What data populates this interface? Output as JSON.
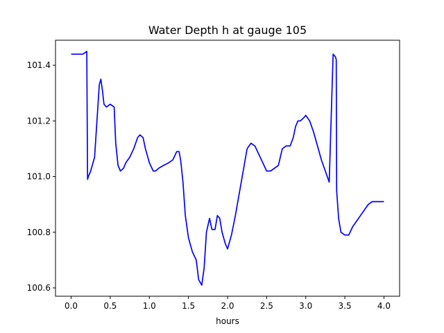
{
  "chart_data": {
    "type": "line",
    "title": "Water Depth h at gauge 105",
    "xlabel": "hours",
    "ylabel": "",
    "xlim": [
      -0.2,
      4.2
    ],
    "ylim": [
      100.57,
      101.49
    ],
    "xticks": [
      0.0,
      0.5,
      1.0,
      1.5,
      2.0,
      2.5,
      3.0,
      3.5,
      4.0
    ],
    "xtick_labels": [
      "0.0",
      "0.5",
      "1.0",
      "1.5",
      "2.0",
      "2.5",
      "3.0",
      "3.5",
      "4.0"
    ],
    "yticks": [
      100.6,
      100.8,
      101.0,
      101.2,
      101.4
    ],
    "ytick_labels": [
      "100.6",
      "100.8",
      "101.0",
      "101.2",
      "101.4"
    ],
    "grid": false,
    "line_color": "#0000ff",
    "series": [
      {
        "x": [
          0.0,
          0.15,
          0.2,
          0.21,
          0.22,
          0.25,
          0.3,
          0.33,
          0.36,
          0.38,
          0.4,
          0.42,
          0.45,
          0.5,
          0.55,
          0.57,
          0.6,
          0.63,
          0.67,
          0.7,
          0.75,
          0.8,
          0.85,
          0.88,
          0.92,
          0.95,
          1.0,
          1.05,
          1.08,
          1.12,
          1.18,
          1.25,
          1.3,
          1.35,
          1.38,
          1.4,
          1.43,
          1.46,
          1.5,
          1.55,
          1.6,
          1.63,
          1.67,
          1.7,
          1.73,
          1.77,
          1.8,
          1.84,
          1.87,
          1.9,
          1.93,
          1.97,
          2.0,
          2.05,
          2.1,
          2.15,
          2.2,
          2.25,
          2.3,
          2.35,
          2.4,
          2.45,
          2.5,
          2.55,
          2.6,
          2.65,
          2.7,
          2.75,
          2.8,
          2.84,
          2.87,
          2.9,
          2.93,
          2.97,
          3.0,
          3.05,
          3.1,
          3.15,
          3.2,
          3.25,
          3.3,
          3.35,
          3.38,
          3.39,
          3.395,
          3.4,
          3.41,
          3.42,
          3.45,
          3.5,
          3.55,
          3.6,
          3.65,
          3.7,
          3.75,
          3.8,
          3.85,
          3.9,
          3.95,
          4.0
        ],
        "y": [
          101.44,
          101.44,
          101.45,
          100.99,
          101.0,
          101.02,
          101.07,
          101.2,
          101.33,
          101.35,
          101.31,
          101.26,
          101.25,
          101.26,
          101.25,
          101.12,
          101.04,
          101.02,
          101.03,
          101.05,
          101.07,
          101.1,
          101.14,
          101.15,
          101.14,
          101.1,
          101.05,
          101.02,
          101.02,
          101.03,
          101.04,
          101.05,
          101.06,
          101.09,
          101.09,
          101.06,
          100.98,
          100.86,
          100.78,
          100.73,
          100.7,
          100.63,
          100.61,
          100.67,
          100.8,
          100.85,
          100.81,
          100.81,
          100.86,
          100.85,
          100.8,
          100.76,
          100.74,
          100.79,
          100.86,
          100.94,
          101.02,
          101.1,
          101.12,
          101.11,
          101.08,
          101.05,
          101.02,
          101.02,
          101.03,
          101.04,
          101.1,
          101.11,
          101.11,
          101.14,
          101.18,
          101.2,
          101.2,
          101.21,
          101.22,
          101.2,
          101.16,
          101.11,
          101.06,
          101.02,
          100.98,
          101.44,
          101.43,
          101.42,
          100.95,
          100.93,
          100.89,
          100.85,
          100.8,
          100.79,
          100.79,
          100.82,
          100.84,
          100.86,
          100.88,
          100.9,
          100.91,
          100.91,
          100.91,
          100.91
        ]
      }
    ]
  }
}
